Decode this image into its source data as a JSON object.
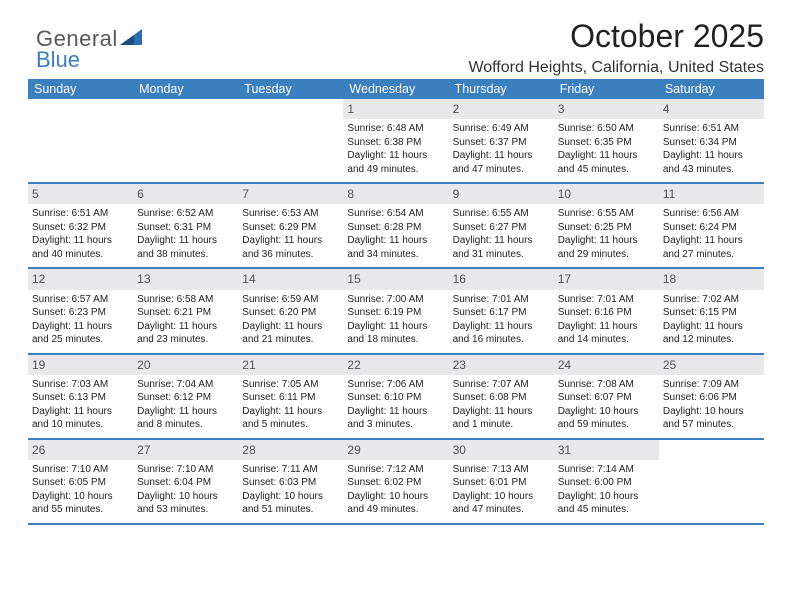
{
  "brand": {
    "text1": "General",
    "text2": "Blue",
    "color1": "#58595b",
    "color2": "#3b7fbf"
  },
  "title": "October 2025",
  "location": "Wofford Heights, California, United States",
  "colors": {
    "headerBar": "#3b7fbf",
    "dateStrip": "#e8e8ea",
    "ruleLine": "#3b7fbf",
    "text": "#222222",
    "white": "#ffffff"
  },
  "dayHeaders": [
    "Sunday",
    "Monday",
    "Tuesday",
    "Wednesday",
    "Thursday",
    "Friday",
    "Saturday"
  ],
  "weeks": [
    [
      null,
      null,
      null,
      {
        "date": "1",
        "sunrise": "Sunrise: 6:48 AM",
        "sunset": "Sunset: 6:38 PM",
        "daylight": "Daylight: 11 hours and 49 minutes."
      },
      {
        "date": "2",
        "sunrise": "Sunrise: 6:49 AM",
        "sunset": "Sunset: 6:37 PM",
        "daylight": "Daylight: 11 hours and 47 minutes."
      },
      {
        "date": "3",
        "sunrise": "Sunrise: 6:50 AM",
        "sunset": "Sunset: 6:35 PM",
        "daylight": "Daylight: 11 hours and 45 minutes."
      },
      {
        "date": "4",
        "sunrise": "Sunrise: 6:51 AM",
        "sunset": "Sunset: 6:34 PM",
        "daylight": "Daylight: 11 hours and 43 minutes."
      }
    ],
    [
      {
        "date": "5",
        "sunrise": "Sunrise: 6:51 AM",
        "sunset": "Sunset: 6:32 PM",
        "daylight": "Daylight: 11 hours and 40 minutes."
      },
      {
        "date": "6",
        "sunrise": "Sunrise: 6:52 AM",
        "sunset": "Sunset: 6:31 PM",
        "daylight": "Daylight: 11 hours and 38 minutes."
      },
      {
        "date": "7",
        "sunrise": "Sunrise: 6:53 AM",
        "sunset": "Sunset: 6:29 PM",
        "daylight": "Daylight: 11 hours and 36 minutes."
      },
      {
        "date": "8",
        "sunrise": "Sunrise: 6:54 AM",
        "sunset": "Sunset: 6:28 PM",
        "daylight": "Daylight: 11 hours and 34 minutes."
      },
      {
        "date": "9",
        "sunrise": "Sunrise: 6:55 AM",
        "sunset": "Sunset: 6:27 PM",
        "daylight": "Daylight: 11 hours and 31 minutes."
      },
      {
        "date": "10",
        "sunrise": "Sunrise: 6:55 AM",
        "sunset": "Sunset: 6:25 PM",
        "daylight": "Daylight: 11 hours and 29 minutes."
      },
      {
        "date": "11",
        "sunrise": "Sunrise: 6:56 AM",
        "sunset": "Sunset: 6:24 PM",
        "daylight": "Daylight: 11 hours and 27 minutes."
      }
    ],
    [
      {
        "date": "12",
        "sunrise": "Sunrise: 6:57 AM",
        "sunset": "Sunset: 6:23 PM",
        "daylight": "Daylight: 11 hours and 25 minutes."
      },
      {
        "date": "13",
        "sunrise": "Sunrise: 6:58 AM",
        "sunset": "Sunset: 6:21 PM",
        "daylight": "Daylight: 11 hours and 23 minutes."
      },
      {
        "date": "14",
        "sunrise": "Sunrise: 6:59 AM",
        "sunset": "Sunset: 6:20 PM",
        "daylight": "Daylight: 11 hours and 21 minutes."
      },
      {
        "date": "15",
        "sunrise": "Sunrise: 7:00 AM",
        "sunset": "Sunset: 6:19 PM",
        "daylight": "Daylight: 11 hours and 18 minutes."
      },
      {
        "date": "16",
        "sunrise": "Sunrise: 7:01 AM",
        "sunset": "Sunset: 6:17 PM",
        "daylight": "Daylight: 11 hours and 16 minutes."
      },
      {
        "date": "17",
        "sunrise": "Sunrise: 7:01 AM",
        "sunset": "Sunset: 6:16 PM",
        "daylight": "Daylight: 11 hours and 14 minutes."
      },
      {
        "date": "18",
        "sunrise": "Sunrise: 7:02 AM",
        "sunset": "Sunset: 6:15 PM",
        "daylight": "Daylight: 11 hours and 12 minutes."
      }
    ],
    [
      {
        "date": "19",
        "sunrise": "Sunrise: 7:03 AM",
        "sunset": "Sunset: 6:13 PM",
        "daylight": "Daylight: 11 hours and 10 minutes."
      },
      {
        "date": "20",
        "sunrise": "Sunrise: 7:04 AM",
        "sunset": "Sunset: 6:12 PM",
        "daylight": "Daylight: 11 hours and 8 minutes."
      },
      {
        "date": "21",
        "sunrise": "Sunrise: 7:05 AM",
        "sunset": "Sunset: 6:11 PM",
        "daylight": "Daylight: 11 hours and 5 minutes."
      },
      {
        "date": "22",
        "sunrise": "Sunrise: 7:06 AM",
        "sunset": "Sunset: 6:10 PM",
        "daylight": "Daylight: 11 hours and 3 minutes."
      },
      {
        "date": "23",
        "sunrise": "Sunrise: 7:07 AM",
        "sunset": "Sunset: 6:08 PM",
        "daylight": "Daylight: 11 hours and 1 minute."
      },
      {
        "date": "24",
        "sunrise": "Sunrise: 7:08 AM",
        "sunset": "Sunset: 6:07 PM",
        "daylight": "Daylight: 10 hours and 59 minutes."
      },
      {
        "date": "25",
        "sunrise": "Sunrise: 7:09 AM",
        "sunset": "Sunset: 6:06 PM",
        "daylight": "Daylight: 10 hours and 57 minutes."
      }
    ],
    [
      {
        "date": "26",
        "sunrise": "Sunrise: 7:10 AM",
        "sunset": "Sunset: 6:05 PM",
        "daylight": "Daylight: 10 hours and 55 minutes."
      },
      {
        "date": "27",
        "sunrise": "Sunrise: 7:10 AM",
        "sunset": "Sunset: 6:04 PM",
        "daylight": "Daylight: 10 hours and 53 minutes."
      },
      {
        "date": "28",
        "sunrise": "Sunrise: 7:11 AM",
        "sunset": "Sunset: 6:03 PM",
        "daylight": "Daylight: 10 hours and 51 minutes."
      },
      {
        "date": "29",
        "sunrise": "Sunrise: 7:12 AM",
        "sunset": "Sunset: 6:02 PM",
        "daylight": "Daylight: 10 hours and 49 minutes."
      },
      {
        "date": "30",
        "sunrise": "Sunrise: 7:13 AM",
        "sunset": "Sunset: 6:01 PM",
        "daylight": "Daylight: 10 hours and 47 minutes."
      },
      {
        "date": "31",
        "sunrise": "Sunrise: 7:14 AM",
        "sunset": "Sunset: 6:00 PM",
        "daylight": "Daylight: 10 hours and 45 minutes."
      },
      null
    ]
  ]
}
